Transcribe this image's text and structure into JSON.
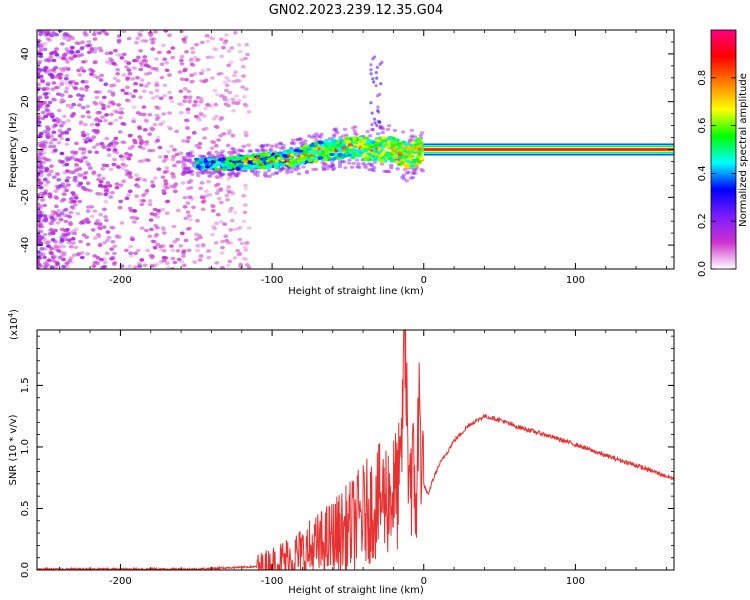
{
  "title": "GN02.2023.239.12.35.G04",
  "chart_data": [
    {
      "type": "heatmap",
      "xlabel": "Height of straight line (km)",
      "ylabel": "Frequency (Hz)",
      "xlim": [
        -255,
        165
      ],
      "ylim": [
        -50,
        50
      ],
      "x_ticks": [
        -200,
        -100,
        0,
        100
      ],
      "y_ticks": [
        -40,
        -20,
        0,
        20,
        40
      ],
      "grid": false,
      "colorbar": {
        "label": "Normalized spectral amplitude",
        "range": [
          0,
          1
        ],
        "ticks": [
          "0.0",
          "0.2",
          "0.4",
          "0.6",
          "0.8"
        ],
        "colormap": [
          "#ffffff",
          "#cc33cc",
          "#7a1cff",
          "#0000ff",
          "#00ffff",
          "#00ff00",
          "#ffff00",
          "#ff8000",
          "#ff0000",
          "#ff0080"
        ]
      },
      "ridge": {
        "x": [
          -150,
          -130,
          -110,
          -90,
          -70,
          -50,
          -30,
          -20,
          -10,
          0,
          50,
          100,
          165
        ],
        "y": [
          -6,
          -6,
          -5,
          -4,
          -1,
          1,
          0,
          0,
          -3,
          0,
          0,
          0,
          0
        ]
      }
    },
    {
      "type": "line",
      "xlabel": "Height of straight line (km)",
      "ylabel": "SNR (10 * v/v)",
      "scale_label": "(x10",
      "scale_exp": "4",
      "scale_close": ")",
      "xlim": [
        -255,
        165
      ],
      "ylim": [
        0,
        1.95
      ],
      "x_ticks": [
        -200,
        -100,
        0,
        100
      ],
      "y_ticks": [
        "0.0",
        "0.5",
        "1.0",
        "1.5"
      ],
      "line_color": "#e83030",
      "series": [
        {
          "x": [
            -255,
            -200,
            -150,
            -110,
            -100,
            -90,
            -80,
            -70,
            -60,
            -50,
            -40,
            -30,
            -25,
            -20,
            -15,
            -13,
            -10,
            -5,
            -3,
            0,
            3,
            5,
            10,
            20,
            30,
            40,
            50,
            60,
            80,
            100,
            120,
            140,
            165
          ],
          "y": [
            0.0,
            0.0,
            0.0,
            0.02,
            0.04,
            0.08,
            0.12,
            0.18,
            0.25,
            0.33,
            0.45,
            0.55,
            0.6,
            0.62,
            0.7,
            1.95,
            0.9,
            0.6,
            1.3,
            0.7,
            0.6,
            0.7,
            0.85,
            1.05,
            1.18,
            1.25,
            1.22,
            1.17,
            1.1,
            1.02,
            0.93,
            0.85,
            0.74
          ]
        }
      ]
    }
  ]
}
